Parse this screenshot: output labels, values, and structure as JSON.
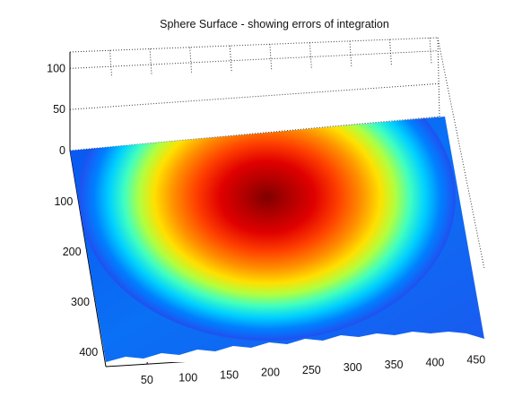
{
  "chart_data": {
    "type": "surface",
    "title": "Sphere Surface - showing errors of integration",
    "xlabel": "",
    "ylabel": "",
    "zlabel": "",
    "x_ticks": [
      "50",
      "100",
      "150",
      "200",
      "250",
      "300",
      "350",
      "400",
      "450"
    ],
    "y_ticks": [
      "100",
      "200",
      "300",
      "400"
    ],
    "z_ticks": [
      "0",
      "50",
      "100"
    ],
    "xlim": [
      0,
      460
    ],
    "ylim": [
      0,
      430
    ],
    "zlim": [
      0,
      120
    ],
    "colormap": "jet",
    "grid": true,
    "surface": {
      "shape": "spherical cap over flat base",
      "base_z": 0,
      "peak_z": 100,
      "peak_x": 220,
      "peak_y": 60
    }
  },
  "colors": {
    "background": "#ffffff",
    "low": "#0000ff",
    "high": "#800000"
  }
}
